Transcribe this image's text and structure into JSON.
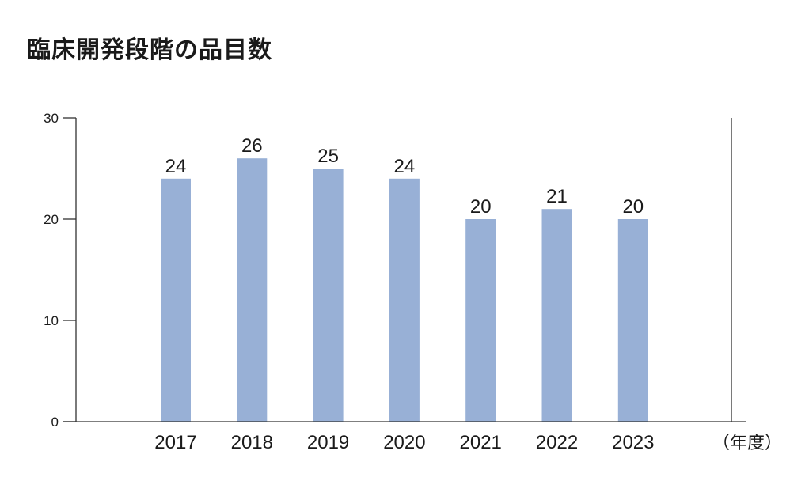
{
  "chart_data": {
    "type": "bar",
    "title": "臨床開発段階の品目数",
    "categories": [
      "2017",
      "2018",
      "2019",
      "2020",
      "2021",
      "2022",
      "2023"
    ],
    "values": [
      24,
      26,
      25,
      24,
      20,
      21,
      20
    ],
    "x_unit_label": "（年度）",
    "ylim": [
      0,
      30
    ],
    "yticks": [
      0,
      10,
      20,
      30
    ],
    "grid": false,
    "legend": "none",
    "bar_color": "#98b0d6",
    "axis_color": "#333333"
  }
}
